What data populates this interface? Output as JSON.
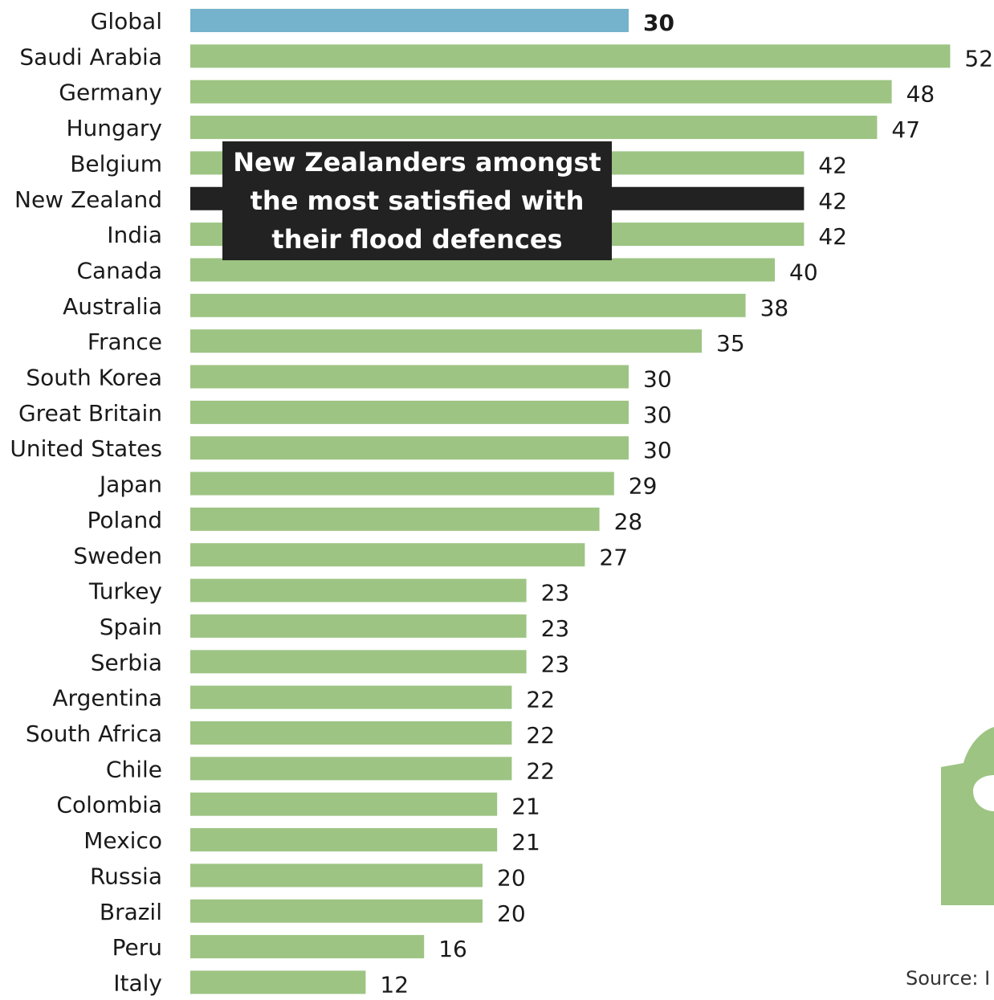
{
  "chart_data": {
    "type": "bar",
    "orientation": "horizontal",
    "categories": [
      "Global",
      "Saudi Arabia",
      "Germany",
      "Hungary",
      "Belgium",
      "New Zealand",
      "India",
      "Canada",
      "Australia",
      "France",
      "South Korea",
      "Great Britain",
      "United States",
      "Japan",
      "Poland",
      "Sweden",
      "Turkey",
      "Spain",
      "Serbia",
      "Argentina",
      "South Africa",
      "Chile",
      "Colombia",
      "Mexico",
      "Russia",
      "Brazil",
      "Peru",
      "Italy"
    ],
    "values": [
      30,
      52,
      48,
      47,
      42,
      42,
      42,
      40,
      38,
      35,
      30,
      30,
      30,
      29,
      28,
      27,
      23,
      23,
      23,
      22,
      22,
      22,
      21,
      21,
      20,
      20,
      16,
      12
    ],
    "highlight": {
      "Global": "#74b3cb",
      "New Zealand": "#222222"
    },
    "default_color": "#9dc483",
    "grid": false,
    "legend": "none"
  },
  "annotation": {
    "text": "New Zealanders amongst the most satisfied with their flood defences"
  },
  "source": "Source: I",
  "colors": {
    "bar": "#9dc483",
    "global": "#74b3cb",
    "highlight": "#222222",
    "text": "#1a1a1a"
  },
  "icons": [
    "green-tap-icon"
  ]
}
